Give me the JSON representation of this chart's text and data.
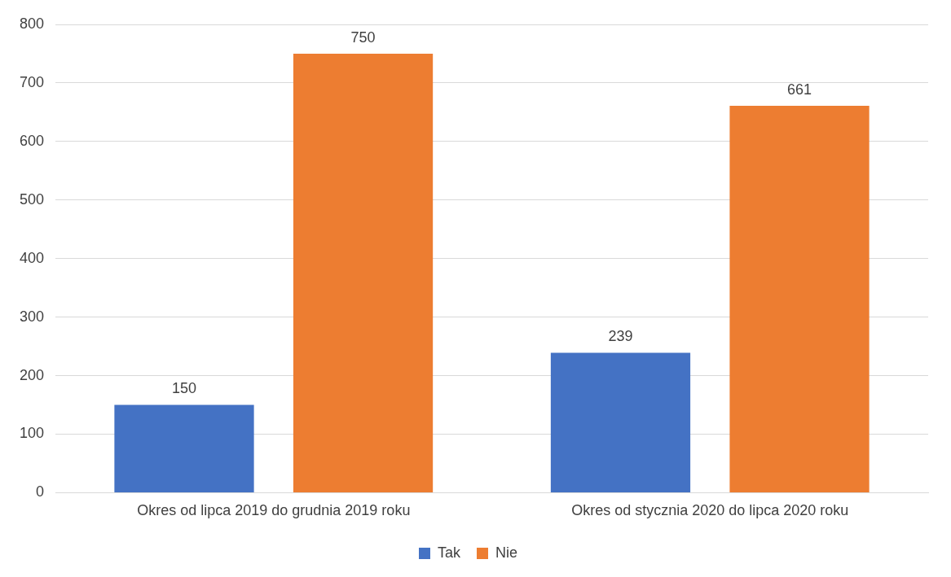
{
  "chart_data": {
    "type": "bar",
    "categories": [
      "Okres od lipca 2019 do grudnia 2019 roku",
      "Okres od stycznia 2020 do lipca 2020 roku"
    ],
    "series": [
      {
        "name": "Tak",
        "color": "#4472c4",
        "values": [
          150,
          239
        ]
      },
      {
        "name": "Nie",
        "color": "#ed7d31",
        "values": [
          750,
          661
        ]
      }
    ],
    "ylim": [
      0,
      800
    ],
    "yticks": [
      0,
      100,
      200,
      300,
      400,
      500,
      600,
      700,
      800
    ],
    "grid": "y",
    "legend": "bottom",
    "data_labels": true
  }
}
